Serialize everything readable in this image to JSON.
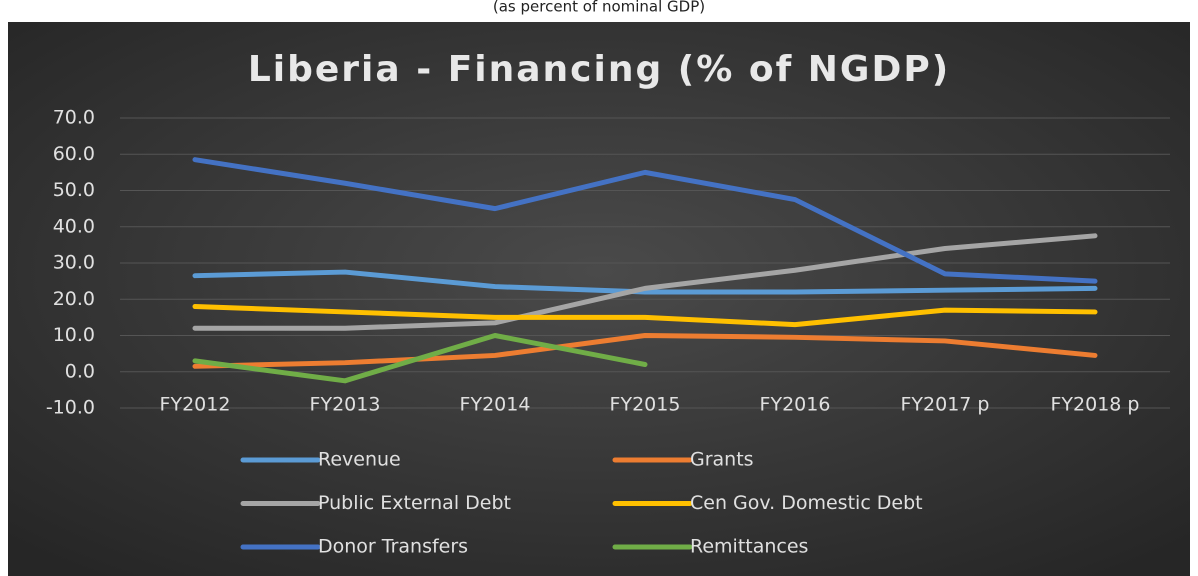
{
  "chart_data": {
    "type": "line",
    "subtitle": "(as percent of nominal GDP)",
    "title": "Liberia - Financing (% of NGDP)",
    "categories": [
      "FY2012",
      "FY2013",
      "FY2014",
      "FY2015",
      "FY2016",
      "FY2017 p",
      "FY2018 p"
    ],
    "series": [
      {
        "name": "Revenue",
        "color": "#5b9bd5",
        "values": [
          26.5,
          27.5,
          23.5,
          22,
          22,
          22.5,
          23
        ]
      },
      {
        "name": "Grants",
        "color": "#ed7d31",
        "values": [
          1.5,
          2.5,
          4.5,
          10,
          9.5,
          8.5,
          4.5
        ]
      },
      {
        "name": "Public External Debt",
        "color": "#a5a5a5",
        "values": [
          12,
          12,
          13.5,
          23,
          28,
          34,
          37.5
        ]
      },
      {
        "name": "Cen Gov. Domestic Debt",
        "color": "#ffc000",
        "values": [
          18,
          16.5,
          15,
          15,
          13,
          17,
          16.5
        ]
      },
      {
        "name": "Donor Transfers",
        "color": "#4472c4",
        "values": [
          58.5,
          52,
          45,
          55,
          47.5,
          27,
          25
        ]
      },
      {
        "name": "Remittances",
        "color": "#70ad47",
        "values": [
          3,
          -2.5,
          10,
          2,
          null,
          null,
          null
        ]
      }
    ],
    "ylim": [
      -10,
      70
    ],
    "yticks": [
      {
        "value": -10,
        "label": "-10.0"
      },
      {
        "value": 0,
        "label": "0.0"
      },
      {
        "value": 10,
        "label": "10.0"
      },
      {
        "value": 20,
        "label": "20.0"
      },
      {
        "value": 30,
        "label": "30.0"
      },
      {
        "value": 40,
        "label": "40.0"
      },
      {
        "value": 50,
        "label": "50.0"
      },
      {
        "value": 60,
        "label": "60.0"
      },
      {
        "value": 70,
        "label": "70.0"
      }
    ],
    "grid": true,
    "legend": "bottom"
  }
}
